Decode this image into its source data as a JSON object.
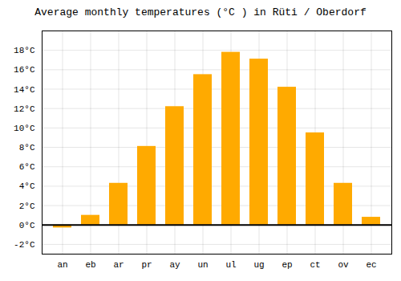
{
  "chart_data": {
    "type": "bar",
    "title": "Average monthly temperatures (°C ) in Rüti / Oberdorf",
    "categories": [
      "an",
      "eb",
      "ar",
      "pr",
      "ay",
      "un",
      "ul",
      "ug",
      "ep",
      "ct",
      "ov",
      "ec"
    ],
    "values": [
      -0.3,
      1.0,
      4.3,
      8.1,
      12.2,
      15.5,
      17.8,
      17.1,
      14.2,
      9.5,
      4.3,
      0.8
    ],
    "color": "#FFAA00",
    "ylim": [
      -3,
      20
    ],
    "yticks": [
      {
        "value": -2,
        "label": "-2°C"
      },
      {
        "value": 0,
        "label": "0°C"
      },
      {
        "value": 2,
        "label": "2°C"
      },
      {
        "value": 4,
        "label": "4°C"
      },
      {
        "value": 6,
        "label": "6°C"
      },
      {
        "value": 8,
        "label": "8°C"
      },
      {
        "value": 10,
        "label": "10°C"
      },
      {
        "value": 12,
        "label": "12°C"
      },
      {
        "value": 14,
        "label": "14°C"
      },
      {
        "value": 16,
        "label": "16°C"
      },
      {
        "value": 18,
        "label": "18°C"
      }
    ],
    "grid": true
  }
}
